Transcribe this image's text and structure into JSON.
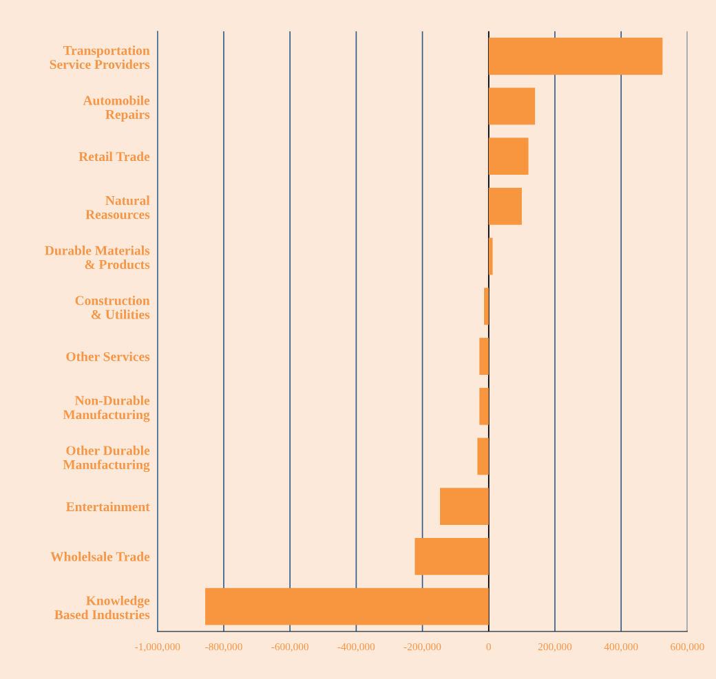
{
  "chart_data": {
    "type": "bar",
    "orientation": "horizontal",
    "categories": [
      "Transportation\nService Providers",
      "Automobile\nRepairs",
      "Retail Trade",
      "Natural\nReasources",
      "Durable Materials\n& Products",
      "Construction\n& Utilities",
      "Other Services",
      "Non-Durable\nManufacturing",
      "Other Durable\nManufacturing",
      "Entertainment",
      "Wholelsale Trade",
      "Knowledge\nBased Industries"
    ],
    "values": [
      525000,
      140000,
      120000,
      100000,
      12000,
      -14000,
      -28000,
      -28000,
      -34000,
      -147000,
      -223000,
      -856000
    ],
    "color": "#f7963f",
    "xlim": [
      -1000000,
      600000
    ],
    "xticks": [
      {
        "value": -1000000,
        "label": "-1,000,000"
      },
      {
        "value": -800000,
        "label": "-800,000"
      },
      {
        "value": -600000,
        "label": "-600,000"
      },
      {
        "value": -400000,
        "label": "-400,000"
      },
      {
        "value": -200000,
        "label": "-200,000"
      },
      0,
      {
        "value": 200000,
        "label": "200,000"
      },
      {
        "value": 400000,
        "label": "400,000"
      },
      {
        "value": 600000,
        "label": "600,000"
      }
    ],
    "grid": "x",
    "ref_lines": [
      {
        "axis": "x",
        "value": 0,
        "color": "#000000"
      }
    ]
  }
}
